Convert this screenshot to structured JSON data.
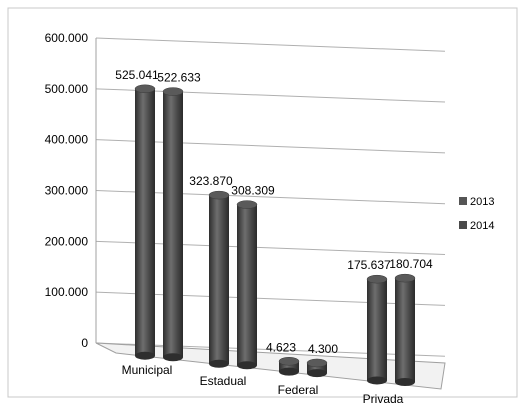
{
  "chart_data": {
    "type": "bar",
    "categories": [
      "Municipal",
      "Estadual",
      "Federal",
      "Privada"
    ],
    "series": [
      {
        "name": "2013",
        "values": [
          525041,
          323870,
          4623,
          175637
        ]
      },
      {
        "name": "2014",
        "values": [
          522633,
          308309,
          4300,
          180704
        ]
      }
    ],
    "value_labels": [
      [
        "525.041",
        "323.870",
        "4.623",
        "175.637"
      ],
      [
        "522.633",
        "308.309",
        "4.300",
        "180.704"
      ]
    ],
    "y_ticks": [
      0,
      100000,
      200000,
      300000,
      400000,
      500000,
      600000
    ],
    "y_tick_labels": [
      "0",
      "100.000",
      "200.000",
      "300.000",
      "400.000",
      "500.000",
      "600.000"
    ],
    "ylim": [
      0,
      600000
    ],
    "grid": true,
    "legend_position": "right",
    "title": "",
    "xlabel": "",
    "ylabel": "",
    "colors": {
      "bar_dark": "#3a3a3a",
      "bar_mid": "#6b6b6b",
      "bar_light": "#8e8e8e",
      "bar_cap": "#5a5a5a",
      "grid": "#b0b0b0",
      "frame": "#a0a0a0"
    }
  }
}
